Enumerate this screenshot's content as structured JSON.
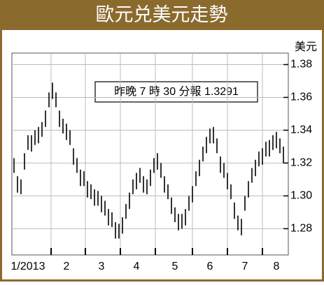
{
  "chart_data": {
    "type": "range-bar",
    "title": "歐元兑美元走勢",
    "y_axis_label": "美元",
    "annotation": "昨晚 7 時 30 分報 1.3291",
    "categories": [
      null,
      null,
      null,
      null,
      "1/2013",
      null,
      null,
      null,
      null,
      null,
      null,
      null,
      null,
      null,
      null,
      "2",
      null,
      null,
      null,
      null,
      null,
      null,
      null,
      null,
      null,
      "3",
      null,
      null,
      null,
      null,
      null,
      null,
      null,
      null,
      null,
      "4",
      null,
      null,
      null,
      null,
      null,
      null,
      null,
      null,
      null,
      null,
      "5",
      null,
      null,
      null,
      null,
      null,
      null,
      null,
      null,
      null,
      "6",
      null,
      null,
      null,
      null,
      null,
      null,
      null,
      null,
      null,
      "7",
      null,
      null,
      null,
      null,
      null,
      null,
      null,
      null,
      "8",
      null,
      null
    ],
    "series": [
      {
        "color": "#000000",
        "high": [
          1.323,
          1.312,
          1.31,
          1.326,
          1.337,
          1.337,
          1.34,
          1.342,
          1.345,
          1.352,
          1.363,
          1.369,
          1.363,
          1.352,
          1.347,
          1.344,
          1.34,
          1.329,
          1.323,
          1.316,
          1.315,
          1.309,
          1.307,
          1.304,
          1.303,
          1.3,
          1.297,
          1.292,
          1.29,
          1.284,
          1.283,
          1.287,
          1.295,
          1.302,
          1.31,
          1.314,
          1.317,
          1.312,
          1.31,
          1.316,
          1.323,
          1.326,
          1.32,
          1.312,
          1.307,
          1.299,
          1.293,
          1.289,
          1.289,
          1.292,
          1.3,
          1.306,
          1.315,
          1.322,
          1.33,
          1.336,
          1.341,
          1.342,
          1.335,
          1.324,
          1.32,
          1.314,
          1.307,
          1.296,
          1.288,
          1.286,
          1.3,
          1.309,
          1.317,
          1.322,
          1.327,
          1.329,
          1.333,
          1.334,
          1.337,
          1.339,
          1.335,
          1.33
        ],
        "low": [
          1.314,
          1.302,
          1.301,
          1.316,
          1.328,
          1.327,
          1.331,
          1.332,
          1.336,
          1.342,
          1.354,
          1.359,
          1.354,
          1.342,
          1.338,
          1.334,
          1.331,
          1.319,
          1.314,
          1.306,
          1.306,
          1.299,
          1.298,
          1.294,
          1.294,
          1.29,
          1.288,
          1.282,
          1.281,
          1.274,
          1.274,
          1.277,
          1.286,
          1.292,
          1.301,
          1.304,
          1.308,
          1.302,
          1.301,
          1.306,
          1.314,
          1.316,
          1.311,
          1.302,
          1.298,
          1.289,
          1.284,
          1.279,
          1.28,
          1.282,
          1.291,
          1.296,
          1.306,
          1.312,
          1.321,
          1.326,
          1.332,
          1.332,
          1.326,
          1.314,
          1.311,
          1.304,
          1.298,
          1.286,
          1.279,
          1.276,
          1.291,
          1.299,
          1.308,
          1.312,
          1.318,
          1.319,
          1.324,
          1.324,
          1.328,
          1.329,
          1.326,
          1.32
        ]
      }
    ],
    "ylim": [
      1.264,
      1.387
    ],
    "yticks": [
      1.28,
      {
        "value": 1.3,
        "label": "1.30"
      },
      1.32,
      1.34,
      1.36,
      1.38
    ],
    "grid": true
  }
}
